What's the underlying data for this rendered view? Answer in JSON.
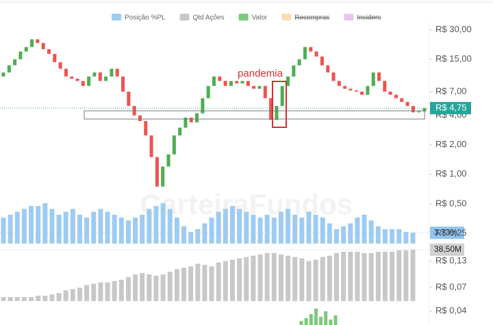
{
  "legend": [
    {
      "name": "Posição %PL",
      "color": "#9ecbf2",
      "hidden": false
    },
    {
      "name": "Qtd Ações",
      "color": "#c8c8c8",
      "hidden": false
    },
    {
      "name": "Valor",
      "color": "#7cc87c",
      "hidden": false
    },
    {
      "name": "Recompras",
      "color": "#fbdcae",
      "hidden": true
    },
    {
      "name": "Insiders",
      "color": "#e9c4ec",
      "hidden": true
    }
  ],
  "watermark": "CarteiraFundos",
  "chart_data": [
    {
      "type": "candlestick",
      "log_scale": true,
      "annotation": "pandemia",
      "current_label": "R$ 4,75",
      "up_color": "#4caf50",
      "down_color": "#ef5350",
      "open": [
        10,
        11,
        13,
        15,
        18,
        20,
        24,
        22,
        19,
        17,
        14,
        12,
        10,
        9.5,
        9,
        8,
        10,
        11,
        9,
        10,
        12,
        10,
        7,
        5,
        4,
        3.5,
        2.5,
        1.5,
        0.75,
        1.2,
        1.6,
        2.5,
        3,
        3.8,
        3.4,
        4.2,
        6,
        8,
        10,
        9,
        8,
        9,
        8.5,
        9,
        8,
        7.5,
        8,
        6,
        3.6,
        5,
        8,
        10,
        13,
        15,
        20,
        18,
        16,
        13,
        11,
        9,
        8,
        7.5,
        7.2,
        7,
        6.5,
        8,
        11,
        9,
        7,
        6.5,
        6,
        5.5,
        5,
        4.3,
        4.4
      ],
      "close": [
        11,
        13,
        15,
        18,
        20,
        24,
        22,
        19,
        17,
        14,
        12,
        10,
        9.5,
        9,
        8,
        10,
        11,
        9,
        10,
        12,
        10,
        7,
        5,
        4,
        3.5,
        2.5,
        1.5,
        0.75,
        1.2,
        1.6,
        2.5,
        3,
        3.8,
        3.4,
        4.2,
        6,
        8,
        10,
        9,
        8,
        9,
        8.5,
        9,
        8,
        7.5,
        8,
        6,
        3.6,
        5,
        8,
        10,
        13,
        15,
        20,
        18,
        16,
        13,
        11,
        9,
        8,
        7.5,
        7.2,
        7,
        6.5,
        8,
        11,
        9,
        7,
        6.5,
        6,
        5.5,
        5,
        4.3,
        4.4,
        4.75
      ],
      "ylim": [
        0.035,
        35
      ],
      "yticks": [
        {
          "value": 30,
          "label": "R$ 30,00"
        },
        {
          "value": 15,
          "label": "R$ 15,00"
        },
        {
          "value": 7,
          "label": "R$ 7,00"
        },
        {
          "value": 4,
          "label": "R$ 4,00"
        },
        {
          "value": 2,
          "label": "R$ 2,00"
        },
        {
          "value": 1,
          "label": "R$ 1,00"
        },
        {
          "value": 0.5,
          "label": "R$ 0,50"
        },
        {
          "value": 0.25,
          "label": "R$ 0,25"
        },
        {
          "value": 0.13,
          "label": "R$ 0,13"
        },
        {
          "value": 0.07,
          "label": "R$ 0,07"
        },
        {
          "value": 0.04,
          "label": "R$ 0,04"
        }
      ]
    },
    {
      "type": "bar",
      "color": "#9ecbf2",
      "tag_color": "#8fc4f0",
      "current_label": "3.73%",
      "ylim": [
        0,
        18
      ],
      "values": [
        9,
        10,
        11,
        12,
        13,
        13,
        14,
        12,
        10,
        11,
        12,
        10,
        9,
        11,
        12,
        11,
        10,
        9,
        8,
        9,
        10,
        12,
        13,
        14,
        12,
        9,
        6,
        4,
        5,
        7,
        9,
        11,
        12,
        13,
        12,
        11,
        10,
        9,
        10,
        9,
        11,
        12,
        10,
        9,
        11,
        10,
        9,
        7,
        5,
        6,
        7,
        9,
        10,
        8,
        6,
        5,
        5,
        5,
        4,
        3.73
      ]
    },
    {
      "type": "bar",
      "color": "#c8c8c8",
      "tag_color": "#d0d0d0",
      "current_label": "38,50M",
      "ylim": [
        0,
        40
      ],
      "values": [
        3,
        3,
        3,
        3,
        3,
        4,
        4,
        5,
        6,
        8,
        9,
        10,
        12,
        13,
        14,
        14,
        15,
        16,
        18,
        20,
        21,
        20,
        19,
        20,
        22,
        24,
        25,
        26,
        28,
        27,
        26,
        29,
        30,
        31,
        32,
        33,
        34,
        35,
        36,
        36,
        35,
        34,
        33,
        32,
        30,
        31,
        33,
        34,
        36,
        37,
        37,
        37,
        36,
        36,
        37,
        37,
        37,
        38,
        38,
        38.5
      ]
    },
    {
      "type": "bar",
      "color": "#7cc87c",
      "ylim": [
        0,
        15
      ],
      "values": [
        3,
        5,
        8,
        12,
        6,
        10,
        4,
        7
      ]
    }
  ]
}
